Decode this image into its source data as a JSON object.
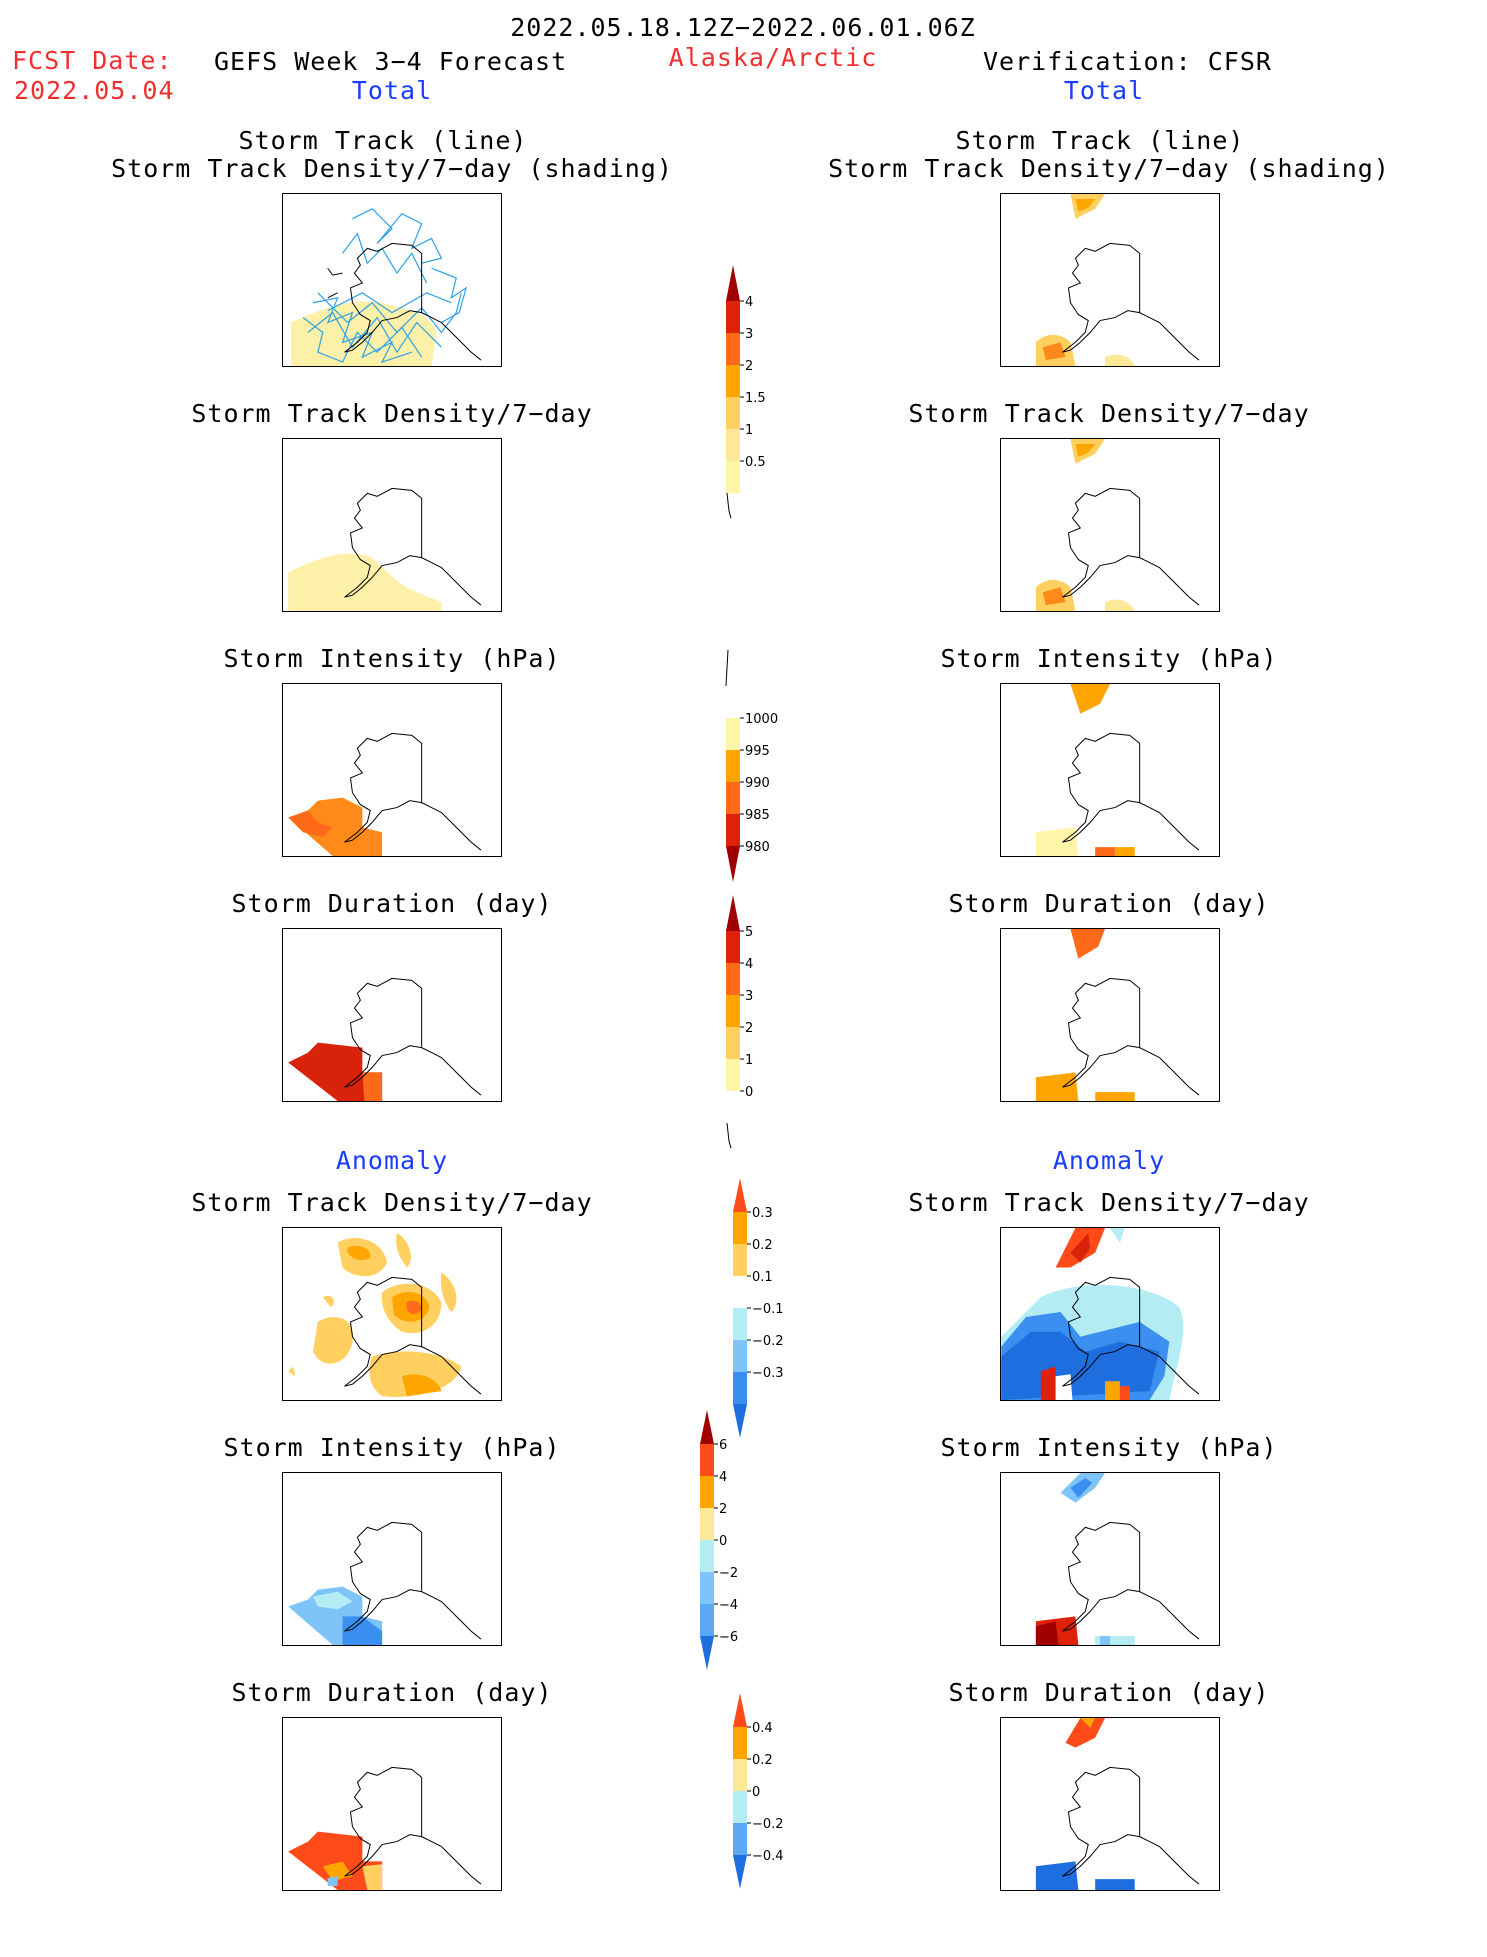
{
  "header": {
    "date_range": "2022.05.18.12Z−2022.06.01.06Z",
    "fcst_label": "FCST Date:",
    "fcst_date": "2022.05.04",
    "forecast_title": "GEFS Week 3−4 Forecast",
    "region": "Alaska/Arctic",
    "verification": "Verification: CFSR"
  },
  "sections": {
    "total": "Total",
    "anomaly": "Anomaly"
  },
  "titles": {
    "track_line": "Storm Track (line)",
    "track_density_shading": "Storm Track Density/7−day (shading)",
    "track_density": "Storm Track Density/7−day",
    "intensity": "Storm Intensity (hPa)",
    "duration": "Storm Duration (day)"
  },
  "colorbars": {
    "density": {
      "labels": [
        "0.5",
        "1",
        "1.5",
        "2",
        "3",
        "4"
      ],
      "colors": [
        "#fff5a8",
        "#fde89a",
        "#ffd060",
        "#ffa500",
        "#ff6a1a",
        "#e0210a",
        "#a00000"
      ]
    },
    "intensity": {
      "labels": [
        "1000",
        "995",
        "990",
        "985",
        "980"
      ],
      "colors": [
        "#ffffff",
        "#fff5a8",
        "#ffa500",
        "#ff6a1a",
        "#e0210a",
        "#a00000"
      ]
    },
    "duration": {
      "labels": [
        "0",
        "1",
        "2",
        "3",
        "4",
        "5"
      ],
      "colors": [
        "#ffffff",
        "#fff5a8",
        "#ffd060",
        "#ffa500",
        "#ff6a1a",
        "#e0210a",
        "#a00000"
      ]
    },
    "density_anomaly": {
      "labels": [
        "0.3",
        "0.2",
        "0.1",
        "−0.1",
        "−0.2",
        "−0.3"
      ],
      "colors": [
        "#ff4a1a",
        "#ffa500",
        "#ffd060",
        "#ffffff",
        "#b4ecf4",
        "#7ec4f8",
        "#3a8ff0",
        "#1e6ee0"
      ]
    },
    "intensity_anomaly": {
      "labels": [
        "6",
        "4",
        "2",
        "0",
        "−2",
        "−4",
        "−6"
      ],
      "colors": [
        "#a00000",
        "#ff4a1a",
        "#ffa500",
        "#fde89a",
        "#b4ecf4",
        "#7ec4f8",
        "#5aa8f6",
        "#1e6ee0"
      ]
    },
    "duration_anomaly": {
      "labels": [
        "0.4",
        "0.2",
        "0",
        "−0.2",
        "−0.4"
      ],
      "colors": [
        "#ff4a1a",
        "#ffa500",
        "#fde89a",
        "#b4ecf4",
        "#5aa8f6",
        "#1e6ee0"
      ]
    }
  }
}
